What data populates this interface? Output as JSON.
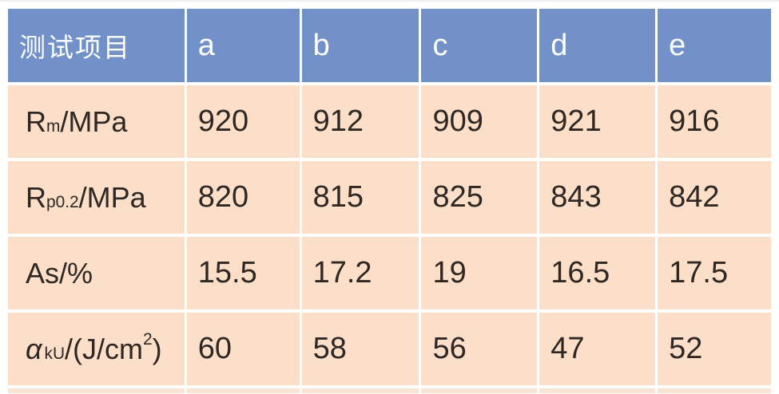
{
  "page": {
    "background": "#ffffff"
  },
  "table": {
    "colors": {
      "header_bg": "#7191C8",
      "header_text": "#ffffff",
      "row_bg": "#FBDFC8",
      "partial_row_bg": "#FAE5D4",
      "body_text": "#2E2724",
      "grid_gap": "#ffffff"
    },
    "header": {
      "label": "测试项目",
      "columns": [
        "a",
        "b",
        "c",
        "d",
        "e"
      ]
    },
    "rows": [
      {
        "label": {
          "pre": "R",
          "sub": "m",
          "mid": "/MPa",
          "sup": "",
          "post": ""
        },
        "values": [
          "920",
          "912",
          "909",
          "921",
          "916"
        ]
      },
      {
        "label": {
          "pre": "R",
          "sub": "p0.2",
          "mid": "/MPa",
          "sup": "",
          "post": ""
        },
        "values": [
          "820",
          "815",
          "825",
          "843",
          "842"
        ]
      },
      {
        "label": {
          "pre": "As/%",
          "sub": "",
          "mid": "",
          "sup": "",
          "post": ""
        },
        "values": [
          "15.5",
          "17.2",
          "19",
          "16.5",
          "17.5"
        ]
      },
      {
        "label": {
          "pre": "α",
          "sub": "kU",
          "mid": "/(J/cm",
          "sup": "2",
          "post": ")"
        },
        "values": [
          "60",
          "58",
          "56",
          "47",
          "52"
        ]
      }
    ]
  },
  "chart_data": {
    "type": "table",
    "title": "",
    "columns": [
      "测试项目",
      "a",
      "b",
      "c",
      "d",
      "e"
    ],
    "rows": [
      {
        "label": "Rm/MPa",
        "values": [
          920,
          912,
          909,
          921,
          916
        ]
      },
      {
        "label": "Rp0.2/MPa",
        "values": [
          820,
          815,
          825,
          843,
          842
        ]
      },
      {
        "label": "As/%",
        "values": [
          15.5,
          17.2,
          19,
          16.5,
          17.5
        ]
      },
      {
        "label": "αkU/(J/cm2)",
        "values": [
          60,
          58,
          56,
          47,
          52
        ]
      }
    ],
    "layout": {
      "header_fill": "#7191C8",
      "body_fill": "#FBDFC8",
      "grid": "white gaps between cells",
      "legend_position": "none"
    }
  }
}
